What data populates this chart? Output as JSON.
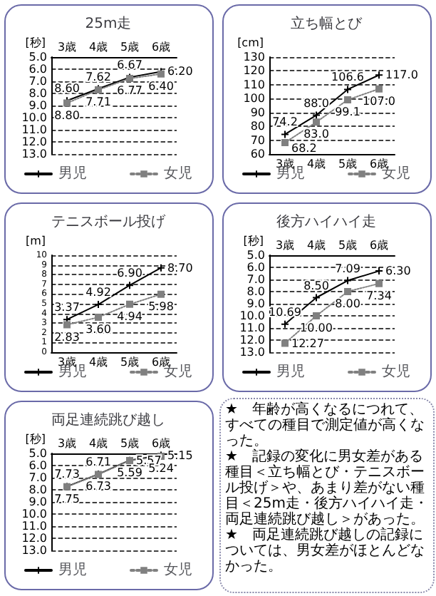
{
  "chart_data": [
    {
      "type": "line",
      "title": "25m走",
      "ylabel": "[秒]",
      "categories": [
        "3歳",
        "4歳",
        "5歳",
        "6歳"
      ],
      "ylim": [
        13.0,
        5.0
      ],
      "yticks": [
        {
          "value": 5,
          "label": "5.0"
        },
        {
          "value": 6,
          "label": "6.0"
        },
        {
          "value": 7,
          "label": "7.0"
        },
        {
          "value": 8,
          "label": "8.0"
        },
        {
          "value": 9,
          "label": "9.0"
        },
        {
          "value": 10,
          "label": "10.0"
        },
        {
          "value": 11,
          "label": "11.0"
        },
        {
          "value": 12,
          "label": "12.0"
        },
        {
          "value": 13,
          "label": "13.0"
        }
      ],
      "grid": "y",
      "legend": "bottom",
      "series": [
        {
          "name": "男児",
          "color": "#000000",
          "marker": "cross",
          "line_style": "solid",
          "values": [
            8.6,
            7.62,
            6.67,
            6.2
          ],
          "value_labels": [
            "8.60",
            "7.62",
            "6.67",
            "6.20"
          ]
        },
        {
          "name": "女児",
          "color": "#808080",
          "marker": "square",
          "line_style": "dotted",
          "values": [
            8.8,
            7.71,
            6.77,
            6.4
          ],
          "value_labels": [
            "8.80",
            "7.71",
            "6.77",
            "6.40"
          ]
        }
      ]
    },
    {
      "type": "line",
      "title": "立ち幅とび",
      "ylabel": "[cm]",
      "categories": [
        "3歳",
        "4歳",
        "5歳",
        "6歳"
      ],
      "ylim": [
        60,
        130
      ],
      "yticks": [
        {
          "value": 60,
          "label": "60"
        },
        {
          "value": 70,
          "label": "70"
        },
        {
          "value": 80,
          "label": "80"
        },
        {
          "value": 90,
          "label": "90"
        },
        {
          "value": 100,
          "label": "100"
        },
        {
          "value": 110,
          "label": "110"
        },
        {
          "value": 120,
          "label": "120"
        },
        {
          "value": 130,
          "label": "130"
        }
      ],
      "grid": "y",
      "legend": "bottom",
      "series": [
        {
          "name": "男児",
          "color": "#000000",
          "marker": "cross",
          "line_style": "solid",
          "values": [
            74.2,
            88.0,
            106.6,
            117.0
          ],
          "value_labels": [
            "74.2",
            "88.0",
            "106.6",
            "117.0"
          ]
        },
        {
          "name": "女児",
          "color": "#808080",
          "marker": "square",
          "line_style": "dotted",
          "values": [
            68.2,
            83.0,
            99.1,
            107.0
          ],
          "value_labels": [
            "68.2",
            "83.0",
            "99.1",
            "107.0"
          ]
        }
      ]
    },
    {
      "type": "line",
      "title": "テニスボール投げ",
      "ylabel": "[m]",
      "categories": [
        "3歳",
        "4歳",
        "5歳",
        "6歳"
      ],
      "ylim": [
        0,
        10
      ],
      "yticks": [
        {
          "value": 0,
          "label": "0"
        },
        {
          "value": 1,
          "label": "1"
        },
        {
          "value": 2,
          "label": "2"
        },
        {
          "value": 3,
          "label": "3"
        },
        {
          "value": 4,
          "label": "4"
        },
        {
          "value": 5,
          "label": "5"
        },
        {
          "value": 6,
          "label": "6"
        },
        {
          "value": 7,
          "label": "7"
        },
        {
          "value": 8,
          "label": "8"
        },
        {
          "value": 9,
          "label": "9"
        },
        {
          "value": 10,
          "label": "10"
        }
      ],
      "grid": "y",
      "legend": "bottom",
      "series": [
        {
          "name": "男児",
          "color": "#000000",
          "marker": "cross",
          "line_style": "solid",
          "values": [
            3.37,
            4.92,
            6.9,
            8.7
          ],
          "value_labels": [
            "3.37",
            "4.92",
            "6.90",
            "8.70"
          ]
        },
        {
          "name": "女児",
          "color": "#808080",
          "marker": "square",
          "line_style": "dotted",
          "values": [
            2.83,
            3.6,
            4.94,
            5.98
          ],
          "value_labels": [
            "2.83",
            "3.60",
            "4.94",
            "5.98"
          ]
        }
      ]
    },
    {
      "type": "line",
      "title": "後方ハイハイ走",
      "ylabel": "[秒]",
      "categories": [
        "3歳",
        "4歳",
        "5歳",
        "6歳"
      ],
      "ylim": [
        13.0,
        5.0
      ],
      "yticks": [
        {
          "value": 5,
          "label": "5.0"
        },
        {
          "value": 6,
          "label": "6.0"
        },
        {
          "value": 7,
          "label": "7.0"
        },
        {
          "value": 8,
          "label": "8.0"
        },
        {
          "value": 9,
          "label": "9.0"
        },
        {
          "value": 10,
          "label": "10.0"
        },
        {
          "value": 11,
          "label": "11.0"
        },
        {
          "value": 12,
          "label": "12.0"
        },
        {
          "value": 13,
          "label": "13.0"
        }
      ],
      "grid": "y",
      "legend": "bottom",
      "series": [
        {
          "name": "男児",
          "color": "#000000",
          "marker": "cross",
          "line_style": "solid",
          "values": [
            10.69,
            8.5,
            7.09,
            6.3
          ],
          "value_labels": [
            "10.69",
            "8.50",
            "7.09",
            "6.30"
          ]
        },
        {
          "name": "女児",
          "color": "#808080",
          "marker": "square",
          "line_style": "dotted",
          "values": [
            12.27,
            10.0,
            8.0,
            7.34
          ],
          "value_labels": [
            "12.27",
            "10.00",
            "8.00",
            "7.34"
          ]
        }
      ]
    },
    {
      "type": "line",
      "title": "両足連続跳び越し",
      "ylabel": "[秒]",
      "categories": [
        "3歳",
        "4歳",
        "5歳",
        "6歳"
      ],
      "ylim": [
        13.0,
        5.0
      ],
      "yticks": [
        {
          "value": 5,
          "label": "5.0"
        },
        {
          "value": 6,
          "label": "6.0"
        },
        {
          "value": 7,
          "label": "7.0"
        },
        {
          "value": 8,
          "label": "8.0"
        },
        {
          "value": 9,
          "label": "9.0"
        },
        {
          "value": 10,
          "label": "10.0"
        },
        {
          "value": 11,
          "label": "11.0"
        },
        {
          "value": 12,
          "label": "12.0"
        },
        {
          "value": 13,
          "label": "13.0"
        }
      ],
      "grid": "y",
      "legend": "bottom",
      "series": [
        {
          "name": "男児",
          "color": "#000000",
          "marker": "cross",
          "line_style": "solid",
          "values": [
            7.73,
            6.71,
            5.57,
            5.15
          ],
          "value_labels": [
            "7.73",
            "6.71",
            "5.57",
            "5.15"
          ]
        },
        {
          "name": "女児",
          "color": "#808080",
          "marker": "square",
          "line_style": "dotted",
          "values": [
            7.75,
            6.73,
            5.59,
            5.24
          ],
          "value_labels": [
            "7.75",
            "6.73",
            "5.59",
            "5.24"
          ]
        }
      ]
    },
    {
      "type": "other",
      "annotations": [
        "★　年齢が高くなるにつれて、すべての種目で測定値が高くなった。",
        "★　記録の変化に男女差がある種目＜立ち幅とび・テニスボール投げ＞や、あまり差がない種目＜25m走・後方ハイハイ走・両足連続跳び越し＞があった。",
        "★　両足連続跳び越しの記録については、男女差がほとんどなかった。"
      ]
    }
  ]
}
